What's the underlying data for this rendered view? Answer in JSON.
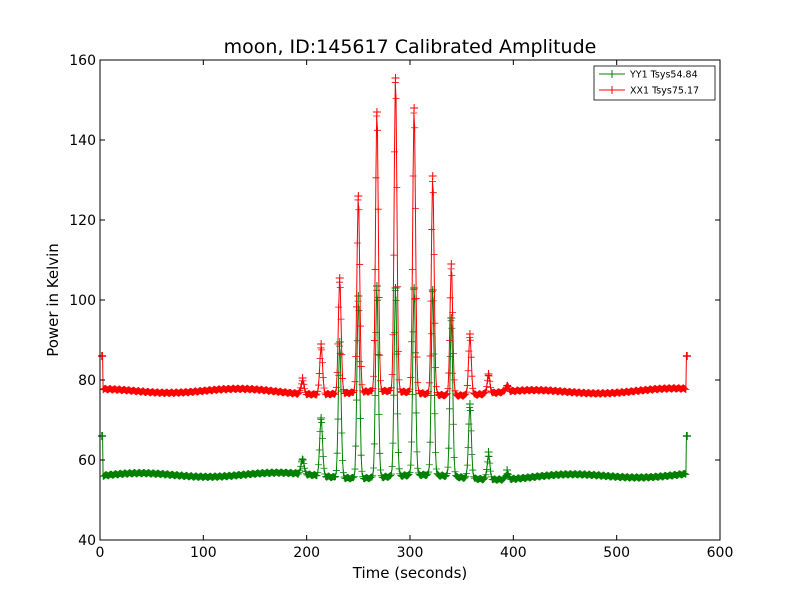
{
  "chart_data": {
    "type": "line",
    "title": "moon, ID:145617 Calibrated Amplitude",
    "xlabel": "Time (seconds)",
    "ylabel": "Power in Kelvin",
    "xlim": [
      0,
      600
    ],
    "ylim": [
      40,
      160
    ],
    "xticks": [
      "0",
      "100",
      "200",
      "300",
      "400",
      "500",
      "600"
    ],
    "yticks": [
      "40",
      "60",
      "80",
      "100",
      "120",
      "140",
      "160"
    ],
    "grid": false,
    "legend": "top-right",
    "x_range_data": [
      2,
      568
    ],
    "series": [
      {
        "name": "YY1 Tsys54.84",
        "color": "#008000",
        "marker": "plus",
        "baseline": 56.0,
        "end_points": [
          [
            2,
            66.0
          ],
          [
            568,
            66.0
          ]
        ],
        "peaks": [
          [
            196,
            60.0
          ],
          [
            214,
            70.5
          ],
          [
            232,
            89.5
          ],
          [
            250,
            101.0
          ],
          [
            268,
            103.5
          ],
          [
            286,
            103.0
          ],
          [
            304,
            103.0
          ],
          [
            322,
            102.5
          ],
          [
            340,
            95.5
          ],
          [
            358,
            74.0
          ],
          [
            376,
            62.0
          ],
          [
            394,
            57.5
          ]
        ]
      },
      {
        "name": "XX1 Tsys75.17",
        "color": "#ff0000",
        "marker": "plus",
        "baseline": 77.0,
        "end_points": [
          [
            2,
            86.0
          ],
          [
            568,
            86.0
          ]
        ],
        "peaks": [
          [
            196,
            80.5
          ],
          [
            214,
            89.0
          ],
          [
            232,
            105.5
          ],
          [
            250,
            126.0
          ],
          [
            268,
            147.0
          ],
          [
            286,
            155.5
          ],
          [
            304,
            148.0
          ],
          [
            322,
            131.0
          ],
          [
            340,
            109.0
          ],
          [
            358,
            91.5
          ],
          [
            376,
            81.5
          ],
          [
            394,
            78.5
          ]
        ]
      }
    ]
  }
}
